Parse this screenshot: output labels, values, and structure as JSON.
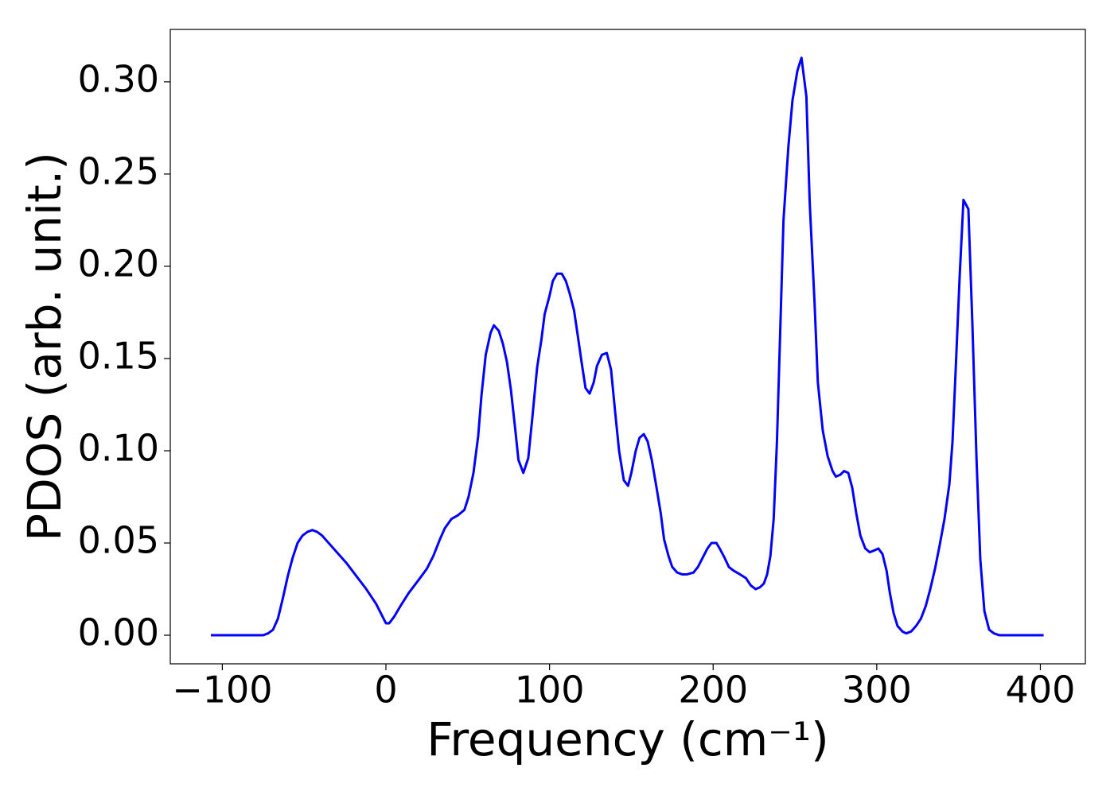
{
  "chart_data": {
    "type": "line",
    "xlabel": "Frequency (cm⁻¹)",
    "ylabel": "PDOS (arb. unit.)",
    "xlim": [
      -131.8,
      427.5
    ],
    "ylim": [
      -0.0155,
      0.3284
    ],
    "xticks": [
      {
        "value": -100,
        "label": "−100"
      },
      0,
      100,
      200,
      300,
      400
    ],
    "yticks": [
      {
        "value": 0,
        "label": "0.00"
      },
      {
        "value": 0.05,
        "label": "0.05"
      },
      {
        "value": 0.1,
        "label": "0.10"
      },
      {
        "value": 0.15,
        "label": "0.15"
      },
      {
        "value": 0.2,
        "label": "0.20"
      },
      {
        "value": 0.25,
        "label": "0.25"
      },
      {
        "value": 0.3,
        "label": "0.30"
      }
    ],
    "x": [
      -107,
      -90,
      -75,
      -72,
      -69,
      -66,
      -63,
      -60,
      -57,
      -54,
      -51,
      -48,
      -45,
      -42,
      -39,
      -36,
      -30,
      -24,
      -18,
      -12,
      -6,
      -2,
      0,
      2,
      5,
      9,
      14,
      20,
      25,
      29,
      33,
      36,
      40,
      44,
      48,
      50.5,
      53.5,
      56.4,
      58.4,
      61,
      64,
      66,
      69,
      71.5,
      74,
      76.4,
      79,
      81,
      84,
      87,
      89.5,
      92.4,
      95,
      97,
      100,
      102,
      104.6,
      107.5,
      110,
      112.4,
      115,
      117,
      119.6,
      122,
      124.5,
      127,
      129,
      132,
      135,
      137.6,
      140,
      142.5,
      145.4,
      148,
      150,
      152.7,
      155,
      157.6,
      160,
      162.5,
      165.4,
      168,
      170,
      172.7,
      175,
      178,
      181,
      184,
      188,
      190.7,
      193.6,
      196.5,
      199,
      202,
      204,
      207,
      209.6,
      212.5,
      216.4,
      220,
      223,
      226,
      228.6,
      231,
      233,
      235,
      237,
      239,
      241,
      243,
      246,
      248.5,
      251.5,
      254,
      257,
      259,
      262,
      264,
      267,
      270,
      273,
      275,
      277.7,
      280,
      282.6,
      285,
      287.5,
      290,
      293,
      295.7,
      298.6,
      301,
      303.5,
      306,
      308,
      310.3,
      312.7,
      315.7,
      318,
      321,
      324,
      327,
      330,
      332.7,
      335.6,
      338.5,
      341.4,
      344.4,
      346.3,
      348.2,
      350.7,
      353,
      356,
      358.4,
      361,
      363.3,
      365.8,
      368.7,
      371.6,
      375,
      402
    ],
    "series": [
      {
        "color": "#0000ff",
        "values": [
          0,
          0,
          0,
          0.001,
          0.003,
          0.009,
          0.02,
          0.032,
          0.042,
          0.05,
          0.054,
          0.056,
          0.057,
          0.056,
          0.054,
          0.051,
          0.045,
          0.039,
          0.032,
          0.025,
          0.017,
          0.01,
          0.0065,
          0.0065,
          0.01,
          0.016,
          0.023,
          0.03,
          0.036,
          0.043,
          0.052,
          0.058,
          0.063,
          0.065,
          0.068,
          0.075,
          0.088,
          0.108,
          0.13,
          0.152,
          0.164,
          0.168,
          0.165,
          0.158,
          0.148,
          0.133,
          0.112,
          0.095,
          0.088,
          0.096,
          0.118,
          0.145,
          0.16,
          0.174,
          0.184,
          0.192,
          0.196,
          0.196,
          0.192,
          0.185,
          0.176,
          0.164,
          0.148,
          0.134,
          0.131,
          0.137,
          0.146,
          0.152,
          0.153,
          0.144,
          0.122,
          0.1,
          0.084,
          0.081,
          0.088,
          0.1,
          0.107,
          0.109,
          0.105,
          0.095,
          0.08,
          0.066,
          0.052,
          0.043,
          0.037,
          0.034,
          0.033,
          0.033,
          0.034,
          0.037,
          0.042,
          0.047,
          0.05,
          0.05,
          0.047,
          0.042,
          0.037,
          0.035,
          0.033,
          0.031,
          0.027,
          0.025,
          0.026,
          0.028,
          0.033,
          0.043,
          0.063,
          0.105,
          0.165,
          0.225,
          0.265,
          0.29,
          0.306,
          0.313,
          0.292,
          0.235,
          0.18,
          0.137,
          0.111,
          0.097,
          0.089,
          0.086,
          0.087,
          0.089,
          0.088,
          0.08,
          0.066,
          0.054,
          0.047,
          0.045,
          0.046,
          0.047,
          0.044,
          0.035,
          0.023,
          0.012,
          0.005,
          0.002,
          0.001,
          0.002,
          0.005,
          0.009,
          0.016,
          0.025,
          0.036,
          0.049,
          0.063,
          0.082,
          0.105,
          0.143,
          0.195,
          0.236,
          0.231,
          0.17,
          0.095,
          0.041,
          0.013,
          0.003,
          0.001,
          0,
          0
        ]
      }
    ]
  }
}
